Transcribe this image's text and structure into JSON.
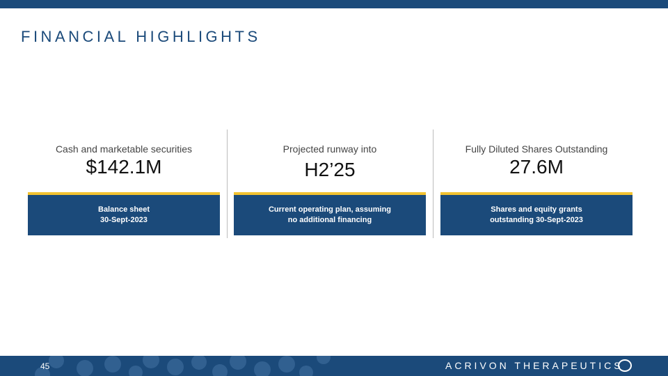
{
  "title": "FINANCIAL HIGHLIGHTS",
  "metrics": [
    {
      "label": "Cash and marketable securities",
      "value": "$142.1M",
      "note": "Balance sheet\n30-Sept-2023"
    },
    {
      "label": "Projected runway into",
      "value": "H2’25",
      "note": "Current operating plan, assuming\nno additional financing"
    },
    {
      "label": "Fully Diluted Shares Outstanding",
      "value": "27.6M",
      "note": "Shares and equity grants\noutstanding 30-Sept-2023"
    }
  ],
  "footer": {
    "page": "45",
    "brand": "ACRIVON THERAPEUTICS"
  },
  "colors": {
    "primary": "#1b4a7a",
    "accent": "#f2c230"
  }
}
